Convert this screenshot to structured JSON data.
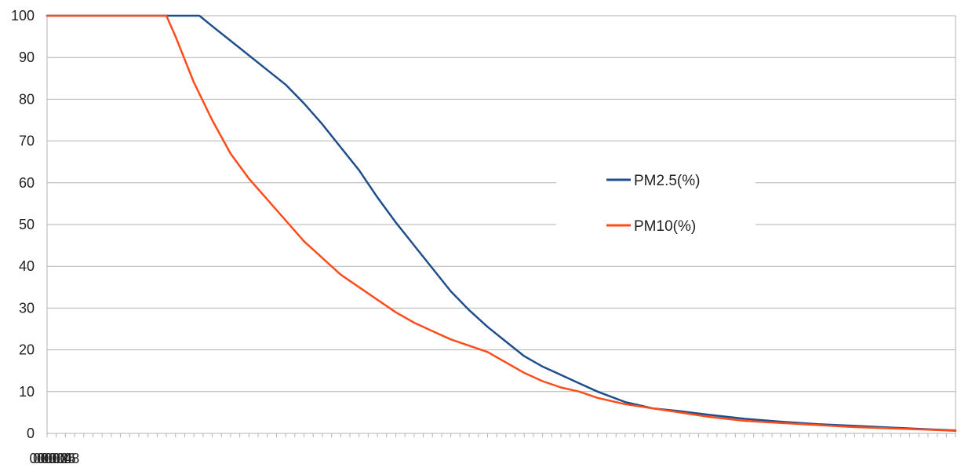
{
  "chart_data": {
    "type": "line",
    "title": "",
    "xlabel": "",
    "ylabel": "",
    "x_unit": "mm:ss",
    "xlim": [
      "00:00",
      "00:08:15"
    ],
    "ylim": [
      0,
      100
    ],
    "grid": true,
    "legend_position": "right",
    "x_ticks": [
      "00:00",
      "00:02",
      "00:04",
      "00:06",
      "00:08"
    ],
    "y_ticks": [
      "0",
      "10",
      "20",
      "30",
      "40",
      "50",
      "60",
      "70",
      "80",
      "90",
      "100"
    ],
    "series": [
      {
        "name": "PM2.5(%)",
        "color": "#1f4e8c",
        "x": [
          "00:00",
          "00:30",
          "01:00",
          "01:23",
          "01:30",
          "01:40",
          "02:00",
          "02:10",
          "02:20",
          "02:30",
          "02:40",
          "02:50",
          "03:00",
          "03:10",
          "03:20",
          "03:30",
          "03:40",
          "03:50",
          "04:00",
          "04:10",
          "04:20",
          "04:30",
          "04:40",
          "04:50",
          "05:00",
          "05:15",
          "05:30",
          "05:45",
          "06:00",
          "06:20",
          "06:40",
          "07:00",
          "07:20",
          "07:40",
          "08:00",
          "08:15"
        ],
        "values": [
          100,
          100,
          100,
          100,
          97.5,
          94,
          87,
          83.5,
          79,
          74,
          68.5,
          63,
          56.5,
          50.5,
          45,
          39.5,
          34,
          29.5,
          25.5,
          22,
          18.5,
          16,
          14,
          12,
          10,
          7.5,
          6,
          5.3,
          4.5,
          3.5,
          2.8,
          2.2,
          1.8,
          1.4,
          1.0,
          0.7
        ]
      },
      {
        "name": "PM10(%)",
        "color": "#ff4c1a",
        "x": [
          "00:00",
          "00:30",
          "01:00",
          "01:05",
          "01:10",
          "01:20",
          "01:30",
          "01:40",
          "01:50",
          "02:00",
          "02:10",
          "02:20",
          "02:30",
          "02:40",
          "02:50",
          "03:00",
          "03:10",
          "03:20",
          "03:30",
          "03:40",
          "03:50",
          "04:00",
          "04:10",
          "04:20",
          "04:30",
          "04:40",
          "04:50",
          "05:00",
          "05:15",
          "05:30",
          "05:45",
          "06:00",
          "06:20",
          "06:40",
          "07:00",
          "07:20",
          "07:40",
          "08:00",
          "08:15"
        ],
        "values": [
          100,
          100,
          100,
          100,
          95,
          84,
          75,
          67,
          61,
          56,
          51,
          46,
          42,
          38,
          35,
          32,
          29,
          26.5,
          24.5,
          22.5,
          21,
          19.5,
          17,
          14.5,
          12.5,
          11,
          10,
          8.5,
          7,
          6,
          5,
          4,
          3,
          2.5,
          2,
          1.5,
          1.2,
          0.9,
          0.6
        ]
      }
    ]
  }
}
